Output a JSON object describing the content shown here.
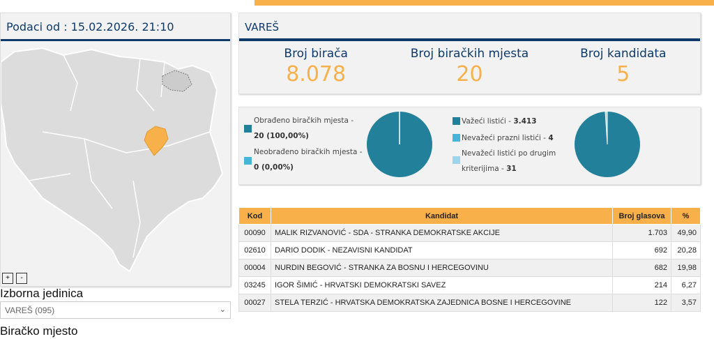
{
  "left": {
    "date_label": "Podaci od : 15.02.2026. 21:10",
    "zoom_in": "+",
    "zoom_out": "-",
    "unit_label": "Izborna jedinica",
    "unit_value": "VAREŠ (095)",
    "station_label": "Biračko mjesto"
  },
  "header": {
    "title": "VAREŠ"
  },
  "stats": [
    {
      "label": "Broj birača",
      "value": "8.078"
    },
    {
      "label": "Broj biračkih mjesta",
      "value": "20"
    },
    {
      "label": "Broj kandidata",
      "value": "5"
    }
  ],
  "processing": {
    "processed_label": "Obrađeno biračkih mjesta -",
    "processed_value": "20 (100,00%)",
    "unprocessed_label": "Neobrađeno biračkih mjesta -",
    "unprocessed_value": "0 (0,00%)",
    "processed_fraction": 1.0
  },
  "ballots": {
    "valid_label": "Važeći listići -",
    "valid_value": "3.413",
    "blank_label": "Nevažeći prazni listići -",
    "blank_value": "4",
    "other_label1": "Nevažeći listići po drugim",
    "other_label2": "kriterijima -",
    "other_value": "31",
    "valid": 3413,
    "blank": 4,
    "other": 31
  },
  "colors": {
    "accent": "#f8b04a",
    "navy": "#0d3a6b",
    "pie": "#23809a",
    "light": "#45b6d8",
    "lighter": "#9dd6ea"
  },
  "table": {
    "headers": [
      "Kod",
      "Kandidat",
      "Broj glasova",
      "%"
    ],
    "rows": [
      [
        "00090",
        "MALIK RIZVANOVIĆ - SDA - STRANKA DEMOKRATSKE AKCIJE",
        "1.703",
        "49,90"
      ],
      [
        "02610",
        "DARIO DODIK - NEZAVISNI KANDIDAT",
        "692",
        "20,28"
      ],
      [
        "00004",
        "NURDIN BEGOVIĆ - STRANKA ZA BOSNU I HERCEGOVINU",
        "682",
        "19,98"
      ],
      [
        "03245",
        "IGOR ŠIMIĆ - HRVATSKI DEMOKRATSKI SAVEZ",
        "214",
        "6,27"
      ],
      [
        "00027",
        "STELA TERZIĆ - HRVATSKA DEMOKRATSKA ZAJEDNICA BOSNE I HERCEGOVINE",
        "122",
        "3,57"
      ]
    ]
  }
}
